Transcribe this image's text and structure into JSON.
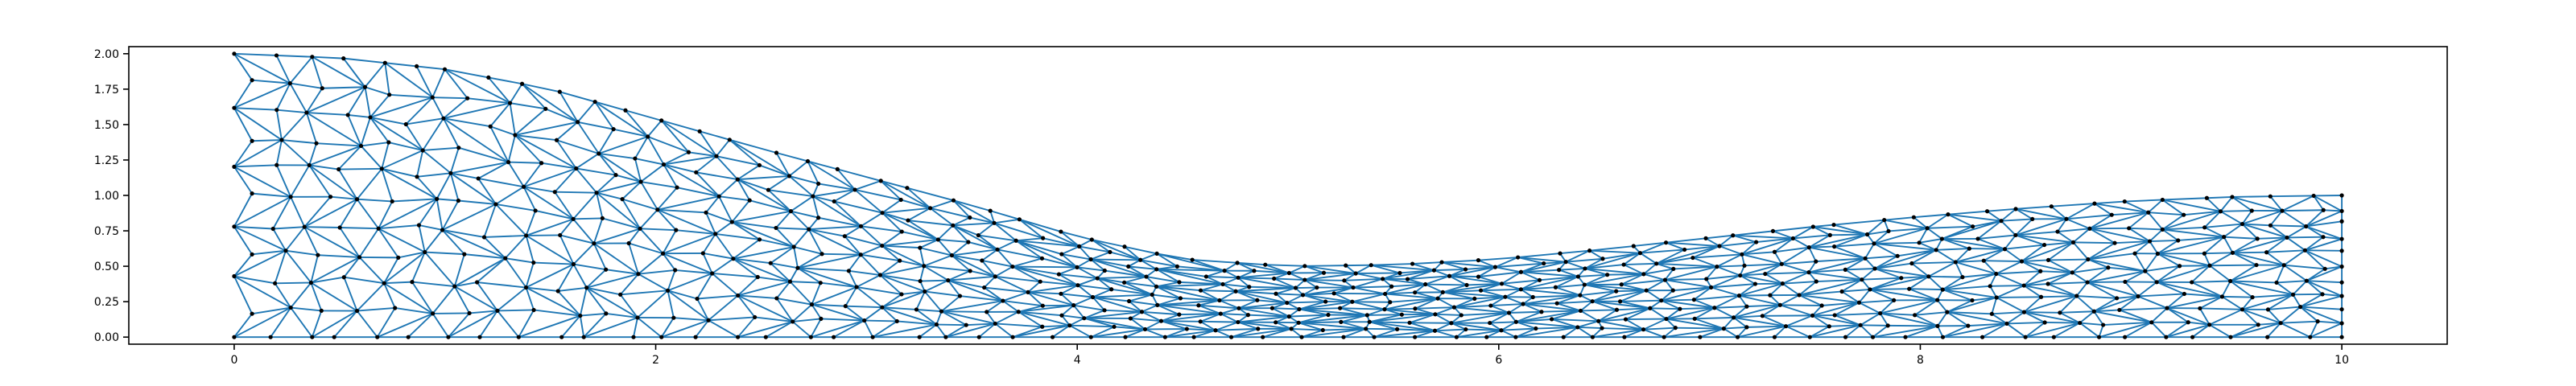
{
  "chart_data": {
    "type": "scatter",
    "description_kind": "triangular mesh of a channel domain (triplot)",
    "title": "",
    "xlabel": "",
    "ylabel": "",
    "xlim": [
      -0.5,
      10.5
    ],
    "ylim": [
      -0.05,
      2.05
    ],
    "grid": false,
    "x_ticks": [
      0,
      2,
      4,
      6,
      8,
      10
    ],
    "x_tick_labels": [
      "0",
      "2",
      "4",
      "6",
      "8",
      "10"
    ],
    "y_ticks": [
      0.0,
      0.25,
      0.5,
      0.75,
      1.0,
      1.25,
      1.5,
      1.75,
      2.0
    ],
    "y_tick_labels": [
      "0.00",
      "0.25",
      "0.50",
      "0.75",
      "1.00",
      "1.25",
      "1.50",
      "1.75",
      "2.00"
    ],
    "domain": {
      "x_range": [
        0,
        10
      ],
      "bottom_y": 0.0,
      "top_profile": {
        "x": [
          0,
          0.5,
          1,
          1.5,
          2,
          2.5,
          3,
          3.5,
          4,
          4.5,
          5,
          5.5,
          6,
          6.5,
          7,
          7.5,
          8,
          8.5,
          9,
          9.5,
          10
        ],
        "y": [
          2.0,
          1.97,
          1.89,
          1.75,
          1.54,
          1.33,
          1.13,
          0.93,
          0.71,
          0.55,
          0.5,
          0.51,
          0.55,
          0.62,
          0.7,
          0.78,
          0.85,
          0.91,
          0.96,
          0.99,
          1.0
        ]
      },
      "nodes_along_x": 60,
      "nodes_across_y": 11
    },
    "series": [
      {
        "name": "mesh edges",
        "color": "#1f77b4"
      },
      {
        "name": "mesh nodes",
        "color": "#000000"
      }
    ]
  }
}
